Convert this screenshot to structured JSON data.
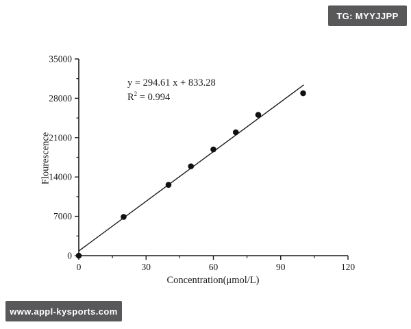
{
  "page": {
    "background": "#ffffff"
  },
  "watermarks": {
    "top_right": {
      "label": "TG: MYYJJPP",
      "bg": "#58585B",
      "fg": "#ffffff"
    },
    "bottom_left": {
      "label": "www.appl-kysports.com",
      "bg": "#58585B",
      "fg": "#ffffff"
    }
  },
  "chart_data": {
    "type": "scatter",
    "title": "",
    "xlabel": "Concentration(μmol/L)",
    "ylabel": "Flourescence",
    "xlim": [
      0,
      120
    ],
    "ylim": [
      0,
      35000
    ],
    "x_ticks": [
      0,
      30,
      60,
      90,
      120
    ],
    "x_minor_ticks": [
      15,
      45,
      75,
      105
    ],
    "y_ticks": [
      0,
      7000,
      14000,
      21000,
      28000,
      35000
    ],
    "y_minor_ticks": [
      3500,
      10500,
      17500,
      24500,
      31500
    ],
    "grid": false,
    "legend": "none",
    "axis_color": "#1a1a1a",
    "marker_color": "#111111",
    "line_color": "#1a1a1a",
    "points": {
      "x": [
        0,
        20,
        40,
        50,
        60,
        70,
        80,
        100
      ],
      "y": [
        0,
        6900,
        12600,
        15900,
        18900,
        21950,
        25050,
        28900
      ]
    },
    "fit_line": {
      "slope": 294.61,
      "intercept": 833.28,
      "x_start": 0,
      "x_end": 100.3
    },
    "annotation": {
      "line1": "y = 294.61 x + 833.28",
      "line2_base": "R",
      "line2_sup": "2",
      "line2_rest": " = 0.994"
    }
  }
}
